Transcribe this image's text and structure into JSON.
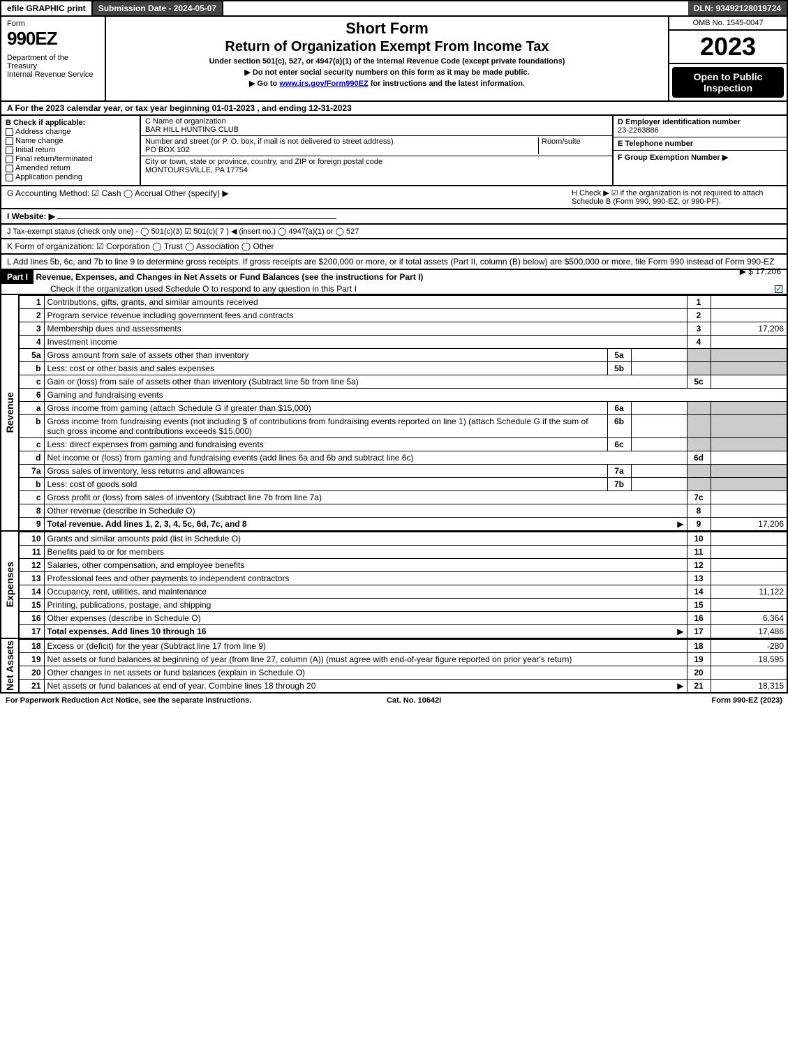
{
  "topbar": {
    "efile": "efile GRAPHIC print",
    "subdate": "Submission Date - 2024-05-07",
    "dln": "DLN: 93492128019724"
  },
  "header": {
    "form_label": "Form",
    "form_no": "990EZ",
    "dept": "Department of the Treasury\nInternal Revenue Service",
    "short": "Short Form",
    "title": "Return of Organization Exempt From Income Tax",
    "sub1": "Under section 501(c), 527, or 4947(a)(1) of the Internal Revenue Code (except private foundations)",
    "sub2": "▶ Do not enter social security numbers on this form as it may be made public.",
    "sub3_pre": "▶ Go to ",
    "sub3_link": "www.irs.gov/Form990EZ",
    "sub3_post": " for instructions and the latest information.",
    "omb": "OMB No. 1545-0047",
    "year": "2023",
    "open": "Open to Public Inspection"
  },
  "A": "A  For the 2023 calendar year, or tax year beginning 01-01-2023 , and ending 12-31-2023",
  "B": {
    "label": "B  Check if applicable:",
    "items": [
      "Address change",
      "Name change",
      "Initial return",
      "Final return/terminated",
      "Amended return",
      "Application pending"
    ]
  },
  "C": {
    "name_lbl": "C Name of organization",
    "name": "BAR HILL HUNTING CLUB",
    "addr_lbl": "Number and street (or P. O. box, if mail is not delivered to street address)",
    "room_lbl": "Room/suite",
    "addr": "PO BOX 102",
    "city_lbl": "City or town, state or province, country, and ZIP or foreign postal code",
    "city": "MONTOURSVILLE, PA  17754"
  },
  "D": {
    "ein_lbl": "D Employer identification number",
    "ein": "23-2263886",
    "tel_lbl": "E Telephone number",
    "tel": "",
    "grp_lbl": "F Group Exemption Number  ▶",
    "grp": ""
  },
  "G": "G Accounting Method:   ☑ Cash   ◯ Accrual   Other (specify) ▶",
  "H": "H  Check ▶ ☑ if the organization is not required to attach Schedule B (Form 990, 990-EZ, or 990-PF).",
  "I": "I Website: ▶",
  "J": "J Tax-exempt status (check only one) - ◯ 501(c)(3) ☑ 501(c)( 7 ) ◀ (insert no.) ◯ 4947(a)(1) or ◯ 527",
  "K": "K Form of organization:  ☑ Corporation  ◯ Trust  ◯ Association  ◯ Other",
  "L": {
    "text": "L Add lines 5b, 6c, and 7b to line 9 to determine gross receipts. If gross receipts are $200,000 or more, or if total assets (Part II, column (B) below) are $500,000 or more, file Form 990 instead of Form 990-EZ",
    "val": "▶ $ 17,206"
  },
  "part1": {
    "hdr": "Part I",
    "title": "Revenue, Expenses, and Changes in Net Assets or Fund Balances (see the instructions for Part I)",
    "check": "Check if the organization used Schedule O to respond to any question in this Part I"
  },
  "sections": {
    "revenue": "Revenue",
    "expenses": "Expenses",
    "netassets": "Net Assets"
  },
  "lines": [
    {
      "n": "1",
      "d": "Contributions, gifts, grants, and similar amounts received",
      "box": "1",
      "v": ""
    },
    {
      "n": "2",
      "d": "Program service revenue including government fees and contracts",
      "box": "2",
      "v": ""
    },
    {
      "n": "3",
      "d": "Membership dues and assessments",
      "box": "3",
      "v": "17,206"
    },
    {
      "n": "4",
      "d": "Investment income",
      "box": "4",
      "v": ""
    },
    {
      "n": "5a",
      "d": "Gross amount from sale of assets other than inventory",
      "sub": "5a",
      "sv": ""
    },
    {
      "n": "b",
      "d": "Less: cost or other basis and sales expenses",
      "sub": "5b",
      "sv": ""
    },
    {
      "n": "c",
      "d": "Gain or (loss) from sale of assets other than inventory (Subtract line 5b from line 5a)",
      "box": "5c",
      "v": ""
    },
    {
      "n": "6",
      "d": "Gaming and fundraising events"
    },
    {
      "n": "a",
      "d": "Gross income from gaming (attach Schedule G if greater than $15,000)",
      "sub": "6a",
      "sv": ""
    },
    {
      "n": "b",
      "d": "Gross income from fundraising events (not including $                     of contributions from fundraising events reported on line 1) (attach Schedule G if the sum of such gross income and contributions exceeds $15,000)",
      "sub": "6b",
      "sv": ""
    },
    {
      "n": "c",
      "d": "Less: direct expenses from gaming and fundraising events",
      "sub": "6c",
      "sv": ""
    },
    {
      "n": "d",
      "d": "Net income or (loss) from gaming and fundraising events (add lines 6a and 6b and subtract line 6c)",
      "box": "6d",
      "v": ""
    },
    {
      "n": "7a",
      "d": "Gross sales of inventory, less returns and allowances",
      "sub": "7a",
      "sv": ""
    },
    {
      "n": "b",
      "d": "Less: cost of goods sold",
      "sub": "7b",
      "sv": ""
    },
    {
      "n": "c",
      "d": "Gross profit or (loss) from sales of inventory (Subtract line 7b from line 7a)",
      "box": "7c",
      "v": ""
    },
    {
      "n": "8",
      "d": "Other revenue (describe in Schedule O)",
      "box": "8",
      "v": ""
    },
    {
      "n": "9",
      "d": "Total revenue. Add lines 1, 2, 3, 4, 5c, 6d, 7c, and 8",
      "box": "9",
      "v": "17,206",
      "bold": true,
      "arrow": true
    }
  ],
  "exp_lines": [
    {
      "n": "10",
      "d": "Grants and similar amounts paid (list in Schedule O)",
      "box": "10",
      "v": ""
    },
    {
      "n": "11",
      "d": "Benefits paid to or for members",
      "box": "11",
      "v": ""
    },
    {
      "n": "12",
      "d": "Salaries, other compensation, and employee benefits",
      "box": "12",
      "v": ""
    },
    {
      "n": "13",
      "d": "Professional fees and other payments to independent contractors",
      "box": "13",
      "v": ""
    },
    {
      "n": "14",
      "d": "Occupancy, rent, utilities, and maintenance",
      "box": "14",
      "v": "11,122"
    },
    {
      "n": "15",
      "d": "Printing, publications, postage, and shipping",
      "box": "15",
      "v": ""
    },
    {
      "n": "16",
      "d": "Other expenses (describe in Schedule O)",
      "box": "16",
      "v": "6,364"
    },
    {
      "n": "17",
      "d": "Total expenses. Add lines 10 through 16",
      "box": "17",
      "v": "17,486",
      "bold": true,
      "arrow": true
    }
  ],
  "net_lines": [
    {
      "n": "18",
      "d": "Excess or (deficit) for the year (Subtract line 17 from line 9)",
      "box": "18",
      "v": "-280"
    },
    {
      "n": "19",
      "d": "Net assets or fund balances at beginning of year (from line 27, column (A)) (must agree with end-of-year figure reported on prior year's return)",
      "box": "19",
      "v": "18,595"
    },
    {
      "n": "20",
      "d": "Other changes in net assets or fund balances (explain in Schedule O)",
      "box": "20",
      "v": ""
    },
    {
      "n": "21",
      "d": "Net assets or fund balances at end of year. Combine lines 18 through 20",
      "box": "21",
      "v": "18,315",
      "arrow": true
    }
  ],
  "footer": {
    "left": "For Paperwork Reduction Act Notice, see the separate instructions.",
    "mid": "Cat. No. 10642I",
    "right": "Form 990-EZ (2023)"
  }
}
